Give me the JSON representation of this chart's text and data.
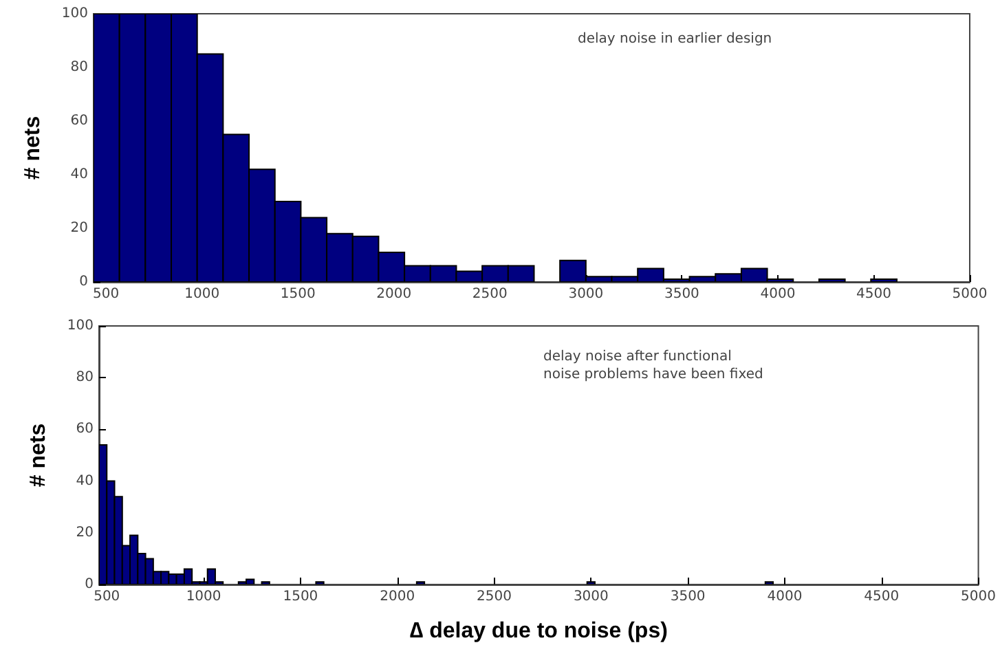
{
  "chart_data": [
    {
      "type": "histogram",
      "ylabel": "# nets",
      "annotations": [
        "delay noise in earlier design"
      ],
      "color": "#000080",
      "bins": [
        435,
        570,
        705,
        840,
        975,
        1110,
        1245,
        1380,
        1515,
        1650,
        1785,
        1920,
        2055,
        2190,
        2325,
        2460,
        2595,
        2730,
        2865,
        3000,
        3135,
        3270,
        3405,
        3540,
        3675,
        3810,
        3945,
        4080,
        4215,
        4350,
        4485,
        4620
      ],
      "values": [
        100,
        100,
        100,
        100,
        85,
        55,
        42,
        30,
        24,
        18,
        17,
        11,
        6,
        6,
        4,
        6,
        6,
        0,
        8,
        2,
        2,
        5,
        1,
        2,
        3,
        5,
        1,
        0,
        1,
        0,
        1
      ],
      "xlim": [
        435,
        5000
      ],
      "xticks": [
        500,
        1000,
        1500,
        2000,
        2500,
        3000,
        3500,
        4000,
        4500,
        5000
      ],
      "ylim": [
        0,
        100
      ],
      "yticks": [
        0,
        20,
        40,
        60,
        80,
        100
      ]
    },
    {
      "type": "histogram",
      "ylabel": "# nets",
      "xlabel": "∆ delay due to noise (ps)",
      "annotations": [
        "delay noise after functional noise problems have been fixed"
      ],
      "color": "#000080",
      "bins": [
        460,
        500,
        540,
        580,
        620,
        660,
        700,
        740,
        780,
        820,
        860,
        900,
        940,
        980,
        1020,
        1060,
        1100,
        1140,
        1180,
        1220,
        1260,
        1300,
        1340,
        1380,
        1420,
        1460,
        1500,
        1540,
        1580,
        1620,
        1660,
        1700,
        1740,
        1780,
        1820,
        1860,
        1900,
        1940,
        1980,
        2020,
        2060,
        2100,
        2140,
        2180,
        2220,
        2260,
        2300,
        2340,
        2380,
        2420,
        2460,
        2500,
        2540,
        2580,
        2620,
        2660,
        2700,
        2740,
        2780,
        2820,
        2860,
        2900,
        2940,
        2980,
        3020,
        3060,
        3100,
        3140,
        3180,
        3220,
        3260,
        3300,
        3340,
        3380,
        3420,
        3460,
        3500,
        3540,
        3580,
        3620,
        3660,
        3700,
        3740,
        3780,
        3820,
        3860,
        3900,
        3940,
        3980
      ],
      "values": [
        54,
        40,
        34,
        15,
        19,
        12,
        10,
        5,
        5,
        4,
        4,
        6,
        1,
        1,
        6,
        1,
        0,
        0,
        1,
        2,
        0,
        1,
        0,
        0,
        0,
        0,
        0,
        0,
        1,
        0,
        0,
        0,
        0,
        0,
        0,
        0,
        0,
        0,
        0,
        0,
        0,
        1,
        0,
        0,
        0,
        0,
        0,
        0,
        0,
        0,
        0,
        0,
        0,
        0,
        0,
        0,
        0,
        0,
        0,
        0,
        0,
        0,
        0,
        1,
        0,
        0,
        0,
        0,
        0,
        0,
        0,
        0,
        0,
        0,
        0,
        0,
        0,
        0,
        0,
        0,
        0,
        0,
        0,
        0,
        0,
        0,
        1,
        0
      ],
      "xlim": [
        460,
        5000
      ],
      "xticks": [
        500,
        1000,
        1500,
        2000,
        2500,
        3000,
        3500,
        4000,
        4500,
        5000
      ],
      "ylim": [
        0,
        100
      ],
      "yticks": [
        0,
        20,
        40,
        60,
        80,
        100
      ]
    }
  ]
}
